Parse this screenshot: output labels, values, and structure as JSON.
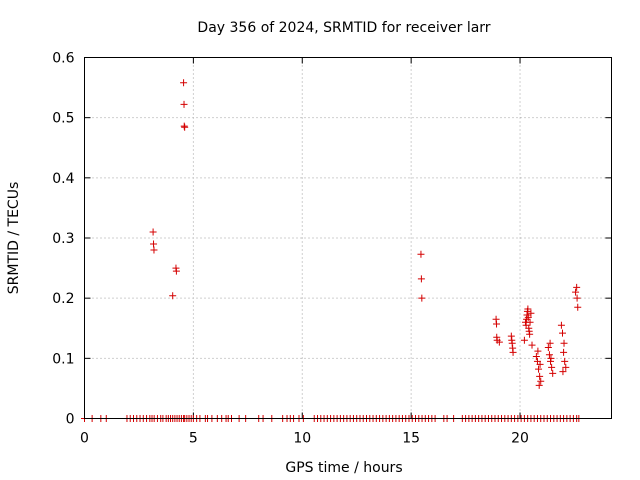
{
  "colors": {
    "series": "#d40000"
  },
  "chart_data": {
    "type": "scatter",
    "title": "Day 356 of 2024, SRMTID for receiver larr",
    "xlabel": "GPS time / hours",
    "ylabel": "SRMTID / TECUs",
    "xlim": [
      0,
      24.2
    ],
    "ylim": [
      0,
      0.6
    ],
    "xticks": [
      0,
      5,
      10,
      15,
      20
    ],
    "xtick_labels": [
      "0",
      "5",
      "10",
      "15",
      "20"
    ],
    "yticks": [
      0,
      0.1,
      0.2,
      0.3,
      0.4,
      0.5,
      0.6
    ],
    "ytick_labels": [
      "0",
      "0.1",
      "0.2",
      "0.3",
      "0.4",
      "0.5",
      "0.6"
    ],
    "grid": true,
    "legend": false,
    "series": [
      {
        "name": "SRMTID",
        "marker": "+",
        "x": [
          0.0,
          0.35,
          0.75,
          1.0,
          1.95,
          2.1,
          2.25,
          2.4,
          2.55,
          2.7,
          2.85,
          3.0,
          3.1,
          3.2,
          3.35,
          3.5,
          3.6,
          3.75,
          3.85,
          3.95,
          4.05,
          4.15,
          4.25,
          4.35,
          4.45,
          4.55,
          4.6,
          4.7,
          4.8,
          4.9,
          5.0,
          5.15,
          5.3,
          5.55,
          5.65,
          5.85,
          6.1,
          6.3,
          6.5,
          6.6,
          6.75,
          7.1,
          7.4,
          8.0,
          8.2,
          8.6,
          9.1,
          9.3,
          9.45,
          9.6,
          9.85,
          10.05,
          10.55,
          10.7,
          10.85,
          11.0,
          11.15,
          11.3,
          11.45,
          11.6,
          11.75,
          11.9,
          12.05,
          12.2,
          12.35,
          12.5,
          12.65,
          12.8,
          12.95,
          13.1,
          13.25,
          13.4,
          13.55,
          13.7,
          13.85,
          14.0,
          14.15,
          14.3,
          14.45,
          14.6,
          14.75,
          14.9,
          15.05,
          15.2,
          15.35,
          15.5,
          15.65,
          15.8,
          15.95,
          16.1,
          16.5,
          16.65,
          16.95,
          17.35,
          17.5,
          17.65,
          17.8,
          17.95,
          18.1,
          18.25,
          18.4,
          18.55,
          18.7,
          18.85,
          19.0,
          19.15,
          19.3,
          19.45,
          19.6,
          19.75,
          19.9,
          20.05,
          20.2,
          20.35,
          20.5,
          20.65,
          20.8,
          20.95,
          21.1,
          21.25,
          21.4,
          21.55,
          21.7,
          21.85,
          22.0,
          22.15,
          22.3,
          22.45,
          22.6,
          22.7,
          3.15,
          3.17,
          3.19,
          4.05,
          4.2,
          4.22,
          4.55,
          4.57,
          4.58,
          4.6,
          15.45,
          15.47,
          15.49,
          18.9,
          18.92,
          18.93,
          18.95,
          19.05,
          19.6,
          19.62,
          19.64,
          19.66,
          19.68,
          20.2,
          20.25,
          20.28,
          20.3,
          20.32,
          20.34,
          20.36,
          20.38,
          20.4,
          20.42,
          20.44,
          20.46,
          20.5,
          20.55,
          20.75,
          20.8,
          20.85,
          20.9,
          20.95,
          20.82,
          20.88,
          20.92,
          21.3,
          21.35,
          21.4,
          21.45,
          21.5,
          21.38,
          21.42,
          21.9,
          21.95,
          22.0,
          22.05,
          22.1,
          21.97,
          22.02,
          22.55,
          22.6,
          22.62,
          22.65
        ],
        "y": [
          0,
          0,
          0,
          0,
          0,
          0,
          0,
          0,
          0,
          0,
          0,
          0,
          0,
          0,
          0,
          0,
          0,
          0,
          0,
          0,
          0,
          0,
          0,
          0,
          0,
          0,
          0,
          0,
          0,
          0,
          0,
          0,
          0,
          0,
          0,
          0,
          0,
          0,
          0,
          0,
          0,
          0,
          0,
          0,
          0,
          0,
          0,
          0,
          0,
          0,
          0,
          0,
          0,
          0,
          0,
          0,
          0,
          0,
          0,
          0,
          0,
          0,
          0,
          0,
          0,
          0,
          0,
          0,
          0,
          0,
          0,
          0,
          0,
          0,
          0,
          0,
          0,
          0,
          0,
          0,
          0,
          0,
          0,
          0,
          0,
          0,
          0,
          0,
          0,
          0,
          0,
          0,
          0,
          0,
          0,
          0,
          0,
          0,
          0,
          0,
          0,
          0,
          0,
          0,
          0,
          0,
          0,
          0,
          0,
          0,
          0,
          0,
          0,
          0,
          0,
          0,
          0,
          0,
          0,
          0,
          0,
          0,
          0,
          0,
          0,
          0,
          0,
          0,
          0,
          0,
          0.31,
          0.29,
          0.28,
          0.204,
          0.25,
          0.245,
          0.558,
          0.522,
          0.486,
          0.484,
          0.273,
          0.232,
          0.2,
          0.165,
          0.157,
          0.135,
          0.13,
          0.127,
          0.137,
          0.13,
          0.125,
          0.117,
          0.11,
          0.13,
          0.16,
          0.155,
          0.165,
          0.172,
          0.178,
          0.182,
          0.168,
          0.15,
          0.145,
          0.14,
          0.16,
          0.175,
          0.122,
          0.103,
          0.095,
          0.082,
          0.07,
          0.062,
          0.112,
          0.055,
          0.09,
          0.118,
          0.106,
          0.095,
          0.085,
          0.075,
          0.125,
          0.1,
          0.155,
          0.142,
          0.11,
          0.095,
          0.085,
          0.078,
          0.125,
          0.21,
          0.218,
          0.2,
          0.185
        ]
      }
    ]
  }
}
